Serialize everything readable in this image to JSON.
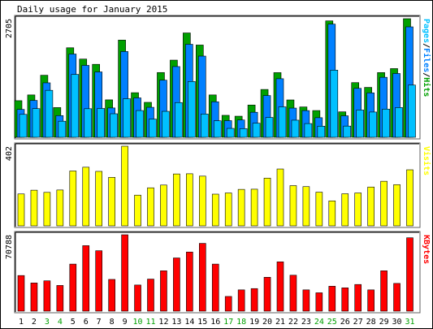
{
  "chart_data": {
    "type": "bar",
    "title": "Daily usage for January 2015",
    "days": [
      "1",
      "2",
      "3",
      "4",
      "5",
      "6",
      "7",
      "8",
      "9",
      "10",
      "11",
      "12",
      "13",
      "14",
      "15",
      "16",
      "17",
      "18",
      "19",
      "20",
      "21",
      "22",
      "23",
      "24",
      "25",
      "26",
      "27",
      "28",
      "29",
      "30",
      "31"
    ],
    "weekend_days": [
      "3",
      "4",
      "10",
      "11",
      "17",
      "18",
      "24",
      "25",
      "31"
    ],
    "colors": {
      "hits": "#00a000",
      "files": "#0080ff",
      "pages": "#00c0ff",
      "visits": "#ffff00",
      "kbytes": "#ff0000",
      "weekday_label": "#000000",
      "weekend_label": "#00a000"
    },
    "panels": [
      {
        "key": "hits_files_pages",
        "ymax_label": "2705",
        "ymax": 2705,
        "right_label_parts": [
          {
            "text": "Pages",
            "color": "#00c0ff"
          },
          {
            "text": "/",
            "color": "#000000"
          },
          {
            "text": "Files",
            "color": "#0080ff"
          },
          {
            "text": "/",
            "color": "#000000"
          },
          {
            "text": "Hits",
            "color": "#00a000"
          }
        ],
        "series": [
          {
            "name": "Hits",
            "values": [
              835,
              966,
              1415,
              678,
              2042,
              1784,
              1664,
              854,
              2217,
              1017,
              797,
              1477,
              1760,
              2380,
              2104,
              966,
              501,
              481,
              736,
              1091,
              1475,
              852,
              692,
              610,
              2655,
              581,
              1247,
              1138,
              1476,
              1567,
              2705
            ]
          },
          {
            "name": "Files",
            "values": [
              636,
              841,
              1242,
              495,
              1899,
              1640,
              1491,
              669,
              1956,
              899,
              684,
              1303,
              1613,
              2121,
              1852,
              810,
              380,
              395,
              571,
              952,
              1336,
              666,
              609,
              447,
              2581,
              490,
              1116,
              1013,
              1368,
              1455,
              2519
            ]
          },
          {
            "name": "Pages",
            "values": [
              523,
              654,
              1071,
              367,
              1434,
              652,
              658,
              537,
              880,
              610,
              415,
              592,
              792,
              1273,
              531,
              376,
              203,
              197,
              322,
              453,
              694,
              390,
              313,
              254,
              1532,
              256,
              622,
              576,
              643,
              679,
              1191
            ]
          }
        ]
      },
      {
        "key": "visits",
        "ymax_label": "402",
        "ymax": 402,
        "right_label_parts": [
          {
            "text": "Visits",
            "color": "#ffff00"
          }
        ],
        "series": [
          {
            "name": "Visits",
            "values": [
              161,
              180,
              169,
              181,
              277,
              296,
              275,
              245,
              402,
              155,
              192,
              206,
              262,
              263,
              251,
              160,
              166,
              184,
              185,
              241,
              287,
              203,
              198,
              170,
              126,
              162,
              166,
              196,
              225,
              208,
              283
            ]
          }
        ]
      },
      {
        "key": "kbytes",
        "ymax_label": "70788",
        "ymax": 70788,
        "right_label_parts": [
          {
            "text": "KBytes",
            "color": "#ff0000"
          }
        ],
        "series": [
          {
            "name": "KBytes",
            "values": [
              33000,
              26100,
              28100,
              23800,
              43600,
              60700,
              56000,
              29400,
              70788,
              24200,
              29700,
              37400,
              49300,
              54800,
              62800,
              43600,
              13600,
              19700,
              20900,
              31400,
              45700,
              33300,
              19700,
              17000,
              23100,
              21600,
              24700,
              19700,
              37400,
              25700,
              68000
            ]
          }
        ]
      }
    ]
  }
}
